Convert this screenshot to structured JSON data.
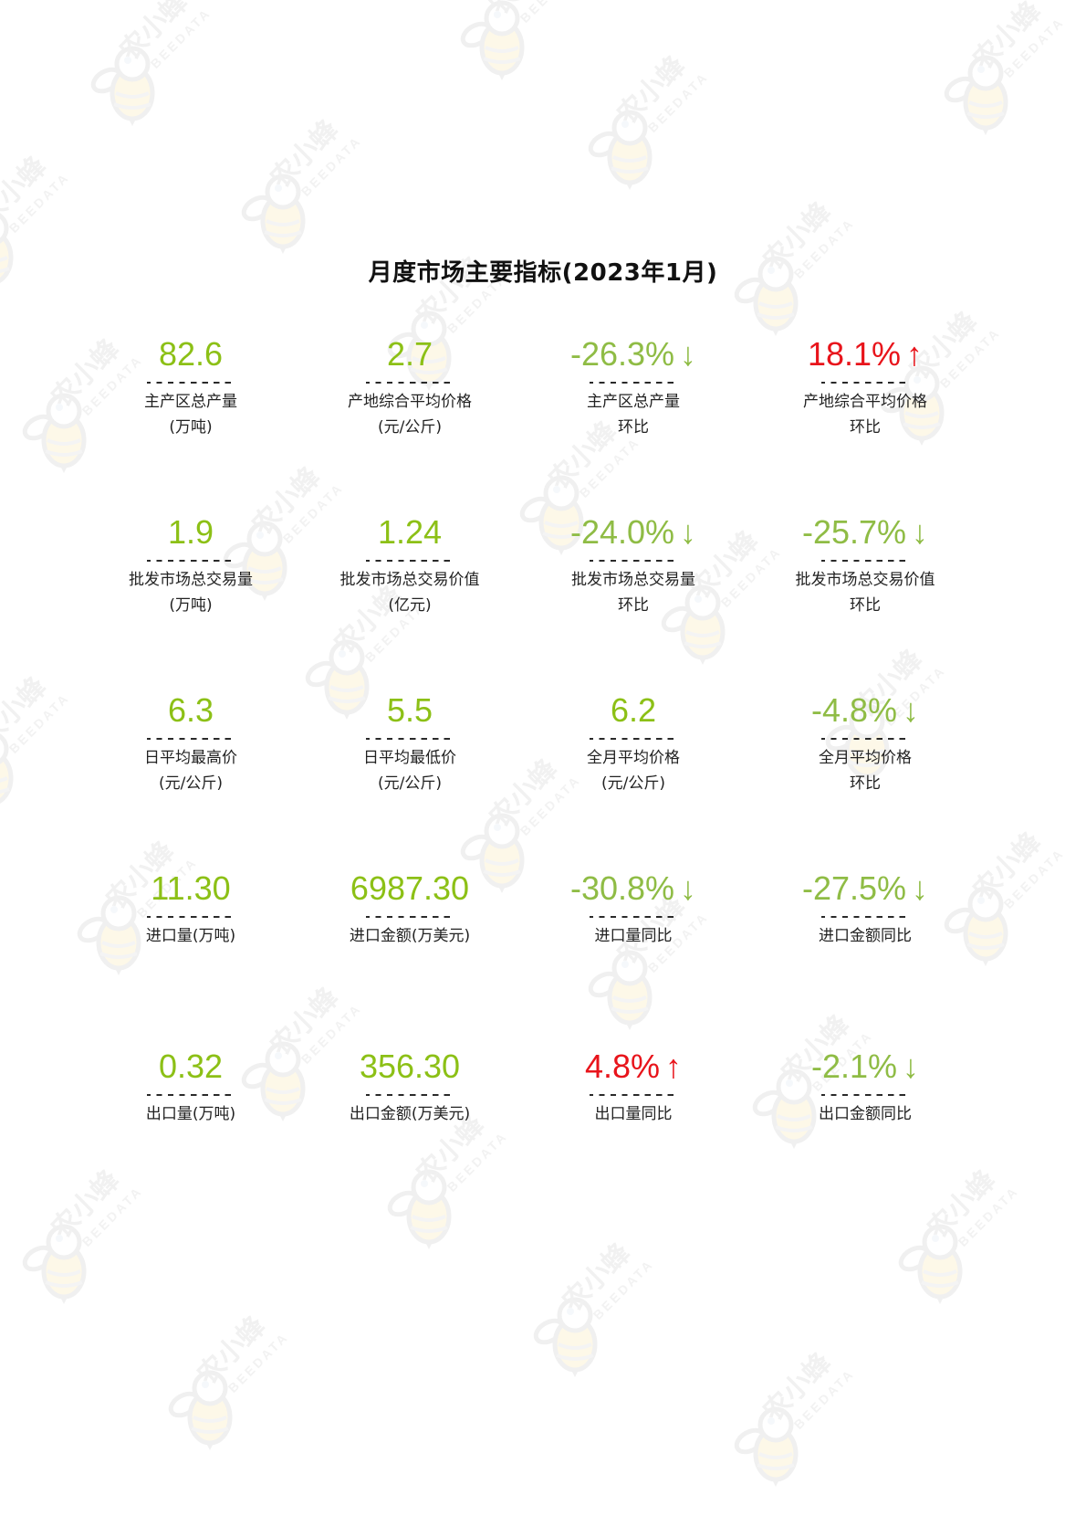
{
  "title": "月度市场主要指标(2023年1月)",
  "colors": {
    "value_green": "#8cc016",
    "decline_green": "#8fbc45",
    "increase_red": "#e8141b",
    "watermark_gray": "#e6e6e6",
    "watermark_yellow": "#fdf3d6"
  },
  "watermark": {
    "text": "农小蜂",
    "subtext": "BEEDATA",
    "icon": "bee-logo-icon"
  },
  "separator": "---------",
  "rows": [
    [
      {
        "value": "82.6",
        "arrow": "",
        "trend": "neutral",
        "label1": "主产区总产量",
        "label2": "(万吨)"
      },
      {
        "value": "2.7",
        "arrow": "",
        "trend": "neutral",
        "label1": "产地综合平均价格",
        "label2": "(元/公斤)"
      },
      {
        "value": "-26.3%",
        "arrow": "↓",
        "trend": "down",
        "label1": "主产区总产量",
        "label2": "环比"
      },
      {
        "value": "18.1%",
        "arrow": "↑",
        "trend": "up",
        "label1": "产地综合平均价格",
        "label2": "环比"
      }
    ],
    [
      {
        "value": "1.9",
        "arrow": "",
        "trend": "neutral",
        "label1": "批发市场总交易量",
        "label2": "(万吨)"
      },
      {
        "value": "1.24",
        "arrow": "",
        "trend": "neutral",
        "label1": "批发市场总交易价值",
        "label2": "(亿元)"
      },
      {
        "value": "-24.0%",
        "arrow": "↓",
        "trend": "down",
        "label1": "批发市场总交易量",
        "label2": "环比"
      },
      {
        "value": "-25.7%",
        "arrow": "↓",
        "trend": "down",
        "label1": "批发市场总交易价值",
        "label2": "环比"
      }
    ],
    [
      {
        "value": "6.3",
        "arrow": "",
        "trend": "neutral",
        "label1": "日平均最高价",
        "label2": "(元/公斤)"
      },
      {
        "value": "5.5",
        "arrow": "",
        "trend": "neutral",
        "label1": "日平均最低价",
        "label2": "(元/公斤)"
      },
      {
        "value": "6.2",
        "arrow": "",
        "trend": "neutral",
        "label1": "全月平均价格",
        "label2": "(元/公斤)"
      },
      {
        "value": "-4.8%",
        "arrow": "↓",
        "trend": "down",
        "label1": "全月平均价格",
        "label2": "环比"
      }
    ],
    [
      {
        "value": "11.30",
        "arrow": "",
        "trend": "neutral",
        "label1": "进口量(万吨)",
        "label2": ""
      },
      {
        "value": "6987.30",
        "arrow": "",
        "trend": "neutral",
        "label1": "进口金额(万美元)",
        "label2": ""
      },
      {
        "value": "-30.8%",
        "arrow": "↓",
        "trend": "down",
        "label1": "进口量同比",
        "label2": ""
      },
      {
        "value": "-27.5%",
        "arrow": "↓",
        "trend": "down",
        "label1": "进口金额同比",
        "label2": ""
      }
    ],
    [
      {
        "value": "0.32",
        "arrow": "",
        "trend": "neutral",
        "label1": "出口量(万吨)",
        "label2": ""
      },
      {
        "value": "356.30",
        "arrow": "",
        "trend": "neutral",
        "label1": "出口金额(万美元)",
        "label2": ""
      },
      {
        "value": "4.8%",
        "arrow": "↑",
        "trend": "up",
        "label1": "出口量同比",
        "label2": ""
      },
      {
        "value": "-2.1%",
        "arrow": "↓",
        "trend": "down",
        "label1": "出口金额同比",
        "label2": ""
      }
    ]
  ]
}
